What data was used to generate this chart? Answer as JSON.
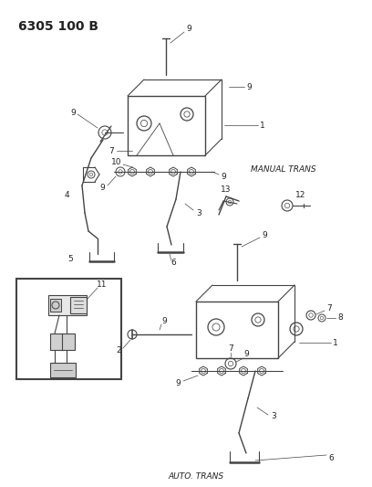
{
  "title": "6305 100 B",
  "bg_color": "#ffffff",
  "line_color": "#444444",
  "text_color": "#222222",
  "label_fontsize": 6.5,
  "title_fontsize": 10,
  "manual_trans_label": "MANUAL TRANS",
  "auto_trans_label": "AUTO. TRANS",
  "figsize": [
    4.08,
    5.33
  ],
  "dpi": 100
}
